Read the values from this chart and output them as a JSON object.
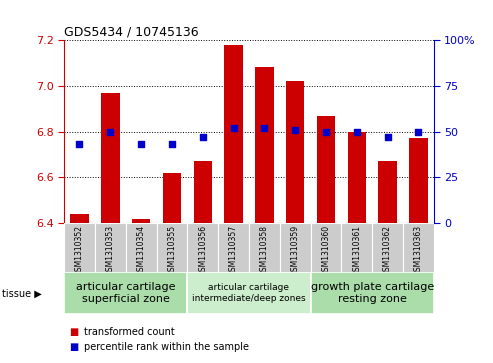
{
  "title": "GDS5434 / 10745136",
  "samples": [
    "GSM1310352",
    "GSM1310353",
    "GSM1310354",
    "GSM1310355",
    "GSM1310356",
    "GSM1310357",
    "GSM1310358",
    "GSM1310359",
    "GSM1310360",
    "GSM1310361",
    "GSM1310362",
    "GSM1310363"
  ],
  "transformed_counts": [
    6.44,
    6.97,
    6.42,
    6.62,
    6.67,
    7.18,
    7.08,
    7.02,
    6.87,
    6.8,
    6.67,
    6.77
  ],
  "percentile_ranks": [
    43,
    50,
    43,
    43,
    47,
    52,
    52,
    51,
    50,
    50,
    47,
    50
  ],
  "ylim_left": [
    6.4,
    7.2
  ],
  "ylim_right": [
    0,
    100
  ],
  "yticks_left": [
    6.4,
    6.6,
    6.8,
    7.0,
    7.2
  ],
  "yticks_right": [
    0,
    25,
    50,
    75,
    100
  ],
  "bar_color": "#cc0000",
  "dot_color": "#0000cc",
  "bar_bottom": 6.4,
  "tissue_groups": [
    {
      "label": "articular cartilage\nsuperficial zone",
      "start": 0,
      "end": 4,
      "color": "#aaddaa",
      "fontsize": 8
    },
    {
      "label": "articular cartilage\nintermediate/deep zones",
      "start": 4,
      "end": 8,
      "color": "#cceecc",
      "fontsize": 6.5
    },
    {
      "label": "growth plate cartilage\nresting zone",
      "start": 8,
      "end": 12,
      "color": "#aaddaa",
      "fontsize": 8
    }
  ],
  "tissue_label": "tissue",
  "legend_bar_label": "transformed count",
  "legend_dot_label": "percentile rank within the sample",
  "left_axis_color": "#cc0000",
  "right_axis_color": "#0000cc",
  "grid_color": "#000000",
  "bg_color_xticklabels": "#cccccc"
}
